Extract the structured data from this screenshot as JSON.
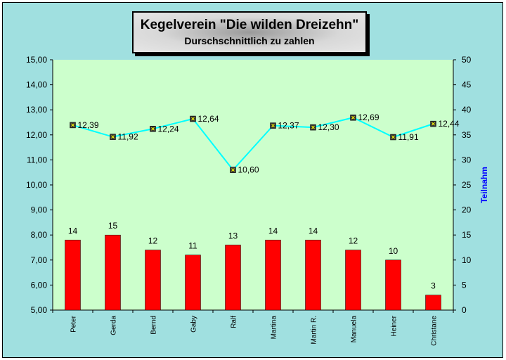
{
  "chart_data": {
    "type": "bar+line",
    "title": "Kegelverein \"Die wilden Dreizehn\"",
    "subtitle": "Durschschnittlich zu zahlen",
    "categories": [
      "Peter",
      "Gerda",
      "Bernd",
      "Gaby",
      "Ralf",
      "Martina",
      "Martin R.",
      "Manuela",
      "Heiner",
      "Christane"
    ],
    "bar_series": {
      "axis": "right",
      "values": [
        14,
        15,
        12,
        11,
        13,
        14,
        14,
        12,
        10,
        3
      ],
      "color": "#ff0000"
    },
    "line_series": {
      "axis": "left",
      "values": [
        12.39,
        11.92,
        12.24,
        12.64,
        10.6,
        12.37,
        12.3,
        12.69,
        11.91,
        12.44
      ],
      "labels": [
        "12,39",
        "11,92",
        "12,24",
        "12,64",
        "10,60",
        "12,37",
        "12,30",
        "12,69",
        "11,91",
        "12,44"
      ],
      "color": "#00ffff"
    },
    "left_axis": {
      "ylim": [
        5,
        15
      ],
      "ticks": [
        "5,00",
        "6,00",
        "7,00",
        "8,00",
        "9,00",
        "10,00",
        "11,00",
        "12,00",
        "13,00",
        "14,00",
        "15,00"
      ]
    },
    "right_axis": {
      "ylim": [
        0,
        50
      ],
      "label": "Teilnahm",
      "label_color": "#0000ff",
      "ticks": [
        "0",
        "5",
        "10",
        "15",
        "20",
        "25",
        "30",
        "35",
        "40",
        "45",
        "50"
      ]
    },
    "plot_background": "#ccffcc",
    "chart_background": "#a0e0e0",
    "grid": false,
    "legend": "none"
  }
}
